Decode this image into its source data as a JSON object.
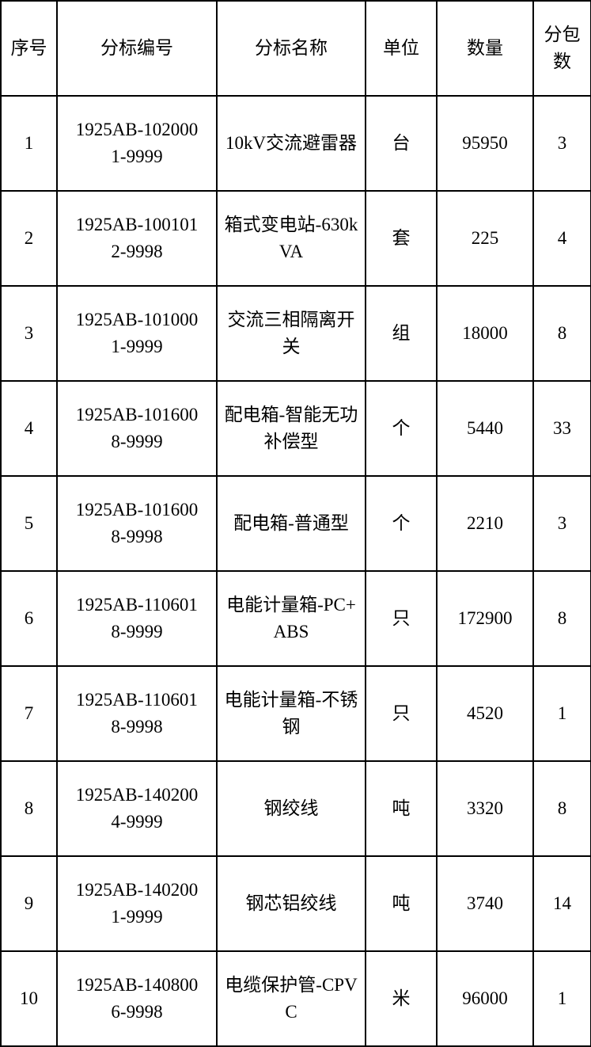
{
  "headers": [
    "序号",
    "分标编号",
    "分标名称",
    "单位",
    "数量",
    "分包数"
  ],
  "rows": [
    {
      "no": "1",
      "code": "1925AB-1020001-9999",
      "name": "10kV交流避雷器",
      "unit": "台",
      "qty": "95950",
      "packages": "3"
    },
    {
      "no": "2",
      "code": "1925AB-1001012-9998",
      "name": "箱式变电站-630kVA",
      "unit": "套",
      "qty": "225",
      "packages": "4"
    },
    {
      "no": "3",
      "code": "1925AB-1010001-9999",
      "name": "交流三相隔离开关",
      "unit": "组",
      "qty": "18000",
      "packages": "8"
    },
    {
      "no": "4",
      "code": "1925AB-1016008-9999",
      "name": "配电箱-智能无功补偿型",
      "unit": "个",
      "qty": "5440",
      "packages": "33"
    },
    {
      "no": "5",
      "code": "1925AB-1016008-9998",
      "name": "配电箱-普通型",
      "unit": "个",
      "qty": "2210",
      "packages": "3"
    },
    {
      "no": "6",
      "code": "1925AB-1106018-9999",
      "name": "电能计量箱-PC+ABS",
      "unit": "只",
      "qty": "172900",
      "packages": "8"
    },
    {
      "no": "7",
      "code": "1925AB-1106018-9998",
      "name": "电能计量箱-不锈钢",
      "unit": "只",
      "qty": "4520",
      "packages": "1"
    },
    {
      "no": "8",
      "code": "1925AB-1402004-9999",
      "name": "钢绞线",
      "unit": "吨",
      "qty": "3320",
      "packages": "8"
    },
    {
      "no": "9",
      "code": "1925AB-1402001-9999",
      "name": "钢芯铝绞线",
      "unit": "吨",
      "qty": "3740",
      "packages": "14"
    },
    {
      "no": "10",
      "code": "1925AB-1408006-9998",
      "name": "电缆保护管-CPVC",
      "unit": "米",
      "qty": "96000",
      "packages": "1"
    }
  ]
}
